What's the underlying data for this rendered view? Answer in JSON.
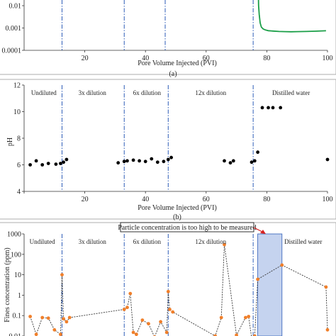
{
  "colors": {
    "dilution_line": "#2e5db8",
    "green_curve": "#1a9e47",
    "ph_points": "#000000",
    "fines_points": "#f07f2a",
    "fines_line": "#333333",
    "shaded_region": "#c5d3ef",
    "callout_box": "#000000",
    "callout_arrow": "#d81f1f"
  },
  "chart_data": [
    {
      "id": "a",
      "type": "line",
      "caption": "(a)",
      "xlabel": "Pore Volume Injected (PVI)",
      "ylabel": "",
      "x_ticks": [
        "20",
        "40",
        "60",
        "80",
        "100"
      ],
      "y_ticks": [
        "0.01",
        "0.001",
        "0.0001"
      ],
      "y_scale": "log",
      "xlim": [
        0,
        100
      ],
      "ylim": [
        0.0001,
        0.05
      ],
      "grid": false,
      "dilution_x": [
        12.5,
        33,
        46.5,
        75.5
      ],
      "series": [
        {
          "name": "",
          "x": [
            77.2,
            77.3,
            77.5,
            77.8,
            78.2,
            78.8,
            79.5,
            80.5,
            82,
            84,
            86,
            88,
            90,
            93,
            96,
            99.5
          ],
          "y": [
            0.05,
            0.01,
            0.004,
            0.0017,
            0.0011,
            0.0009,
            0.00082,
            0.00076,
            0.00073,
            0.0007,
            0.00069,
            0.00068,
            0.00069,
            0.0007,
            0.00072,
            0.00075
          ]
        }
      ]
    },
    {
      "id": "b",
      "type": "scatter",
      "caption": "(b)",
      "xlabel": "Pore Volume Injected (PVI)",
      "ylabel": "pH",
      "x_ticks": [
        "0",
        "20",
        "40",
        "60",
        "80",
        "100"
      ],
      "y_ticks": [
        "4",
        "6",
        "8",
        "10",
        "12"
      ],
      "xlim": [
        0,
        100
      ],
      "ylim": [
        4,
        12
      ],
      "grid": false,
      "region_labels": [
        "Undiluted",
        "3x dilution",
        "6x dilution",
        "12x dilution",
        "Distilled water"
      ],
      "dilution_x": [
        12.5,
        33,
        47.5,
        75.5
      ],
      "series": [
        {
          "name": "",
          "x": [
            2,
            4,
            6,
            8,
            10.5,
            12,
            13,
            14,
            31,
            33,
            34,
            36,
            38,
            40,
            42,
            44,
            46,
            47.5,
            48.5,
            66,
            68,
            69,
            75,
            76,
            77,
            78.5,
            80.5,
            82,
            84.5,
            100
          ],
          "y": [
            6.0,
            6.3,
            6.0,
            6.1,
            6.05,
            6.1,
            6.2,
            6.4,
            6.15,
            6.25,
            6.3,
            6.35,
            6.3,
            6.25,
            6.45,
            6.2,
            6.25,
            6.4,
            6.55,
            6.3,
            6.15,
            6.3,
            6.2,
            6.3,
            6.95,
            10.3,
            10.3,
            10.3,
            10.3,
            6.4
          ]
        }
      ]
    },
    {
      "id": "c",
      "type": "line",
      "caption": "",
      "xlabel": "",
      "ylabel": "Fines concentration (ppm)",
      "y_ticks": [
        "1000",
        "100",
        "10",
        "1",
        "0.1",
        "0.01"
      ],
      "y_scale": "log",
      "xlim": [
        0,
        100
      ],
      "ylim": [
        0.01,
        1000
      ],
      "grid": false,
      "region_labels": [
        "Undiluted",
        "3x dilution",
        "6x dilution",
        "12x dilution",
        "Distilled water"
      ],
      "annotation": "Particle concentration is too high to be measured",
      "shaded_x": [
        77,
        85
      ],
      "dilution_x": [
        12.5,
        33,
        47.5,
        75.5
      ],
      "series": [
        {
          "name": "",
          "x": [
            2,
            4,
            6,
            8,
            10,
            12,
            12.5,
            13,
            14,
            15,
            33,
            34,
            35,
            36,
            37,
            39,
            41,
            43,
            45,
            47,
            47.5,
            48,
            49,
            63,
            65,
            66,
            70,
            73,
            74,
            75,
            76,
            77,
            85,
            99.5,
            100
          ],
          "y": [
            0.09,
            0.012,
            0.08,
            0.075,
            0.02,
            0.012,
            10,
            0.07,
            0.05,
            0.08,
            0.2,
            0.25,
            1.2,
            0.015,
            0.012,
            0.06,
            0.04,
            0.009,
            0.05,
            0.015,
            1.5,
            0.2,
            0.15,
            0.01,
            0.08,
            300,
            0.011,
            0.08,
            0.09,
            0.008,
            0.01,
            6,
            30,
            2.5,
            0.02
          ]
        }
      ]
    }
  ]
}
